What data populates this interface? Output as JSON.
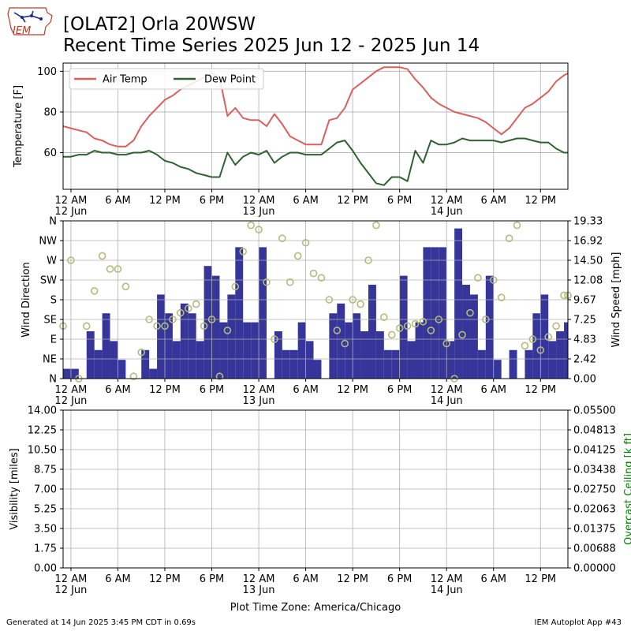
{
  "logo_text": "IEM",
  "title_line1": "[OLAT2] Orla 20WSW",
  "title_line2": "Recent Time Series 2025 Jun 12 - 2025 Jun 14",
  "footer_left": "Generated at 14 Jun 2025 3:45 PM CDT in 0.69s",
  "footer_right": "IEM Autoplot App #43",
  "timezone_label": "Plot Time Zone: America/Chicago",
  "colors": {
    "air_temp": "#d9605f",
    "dew_point": "#2f6131",
    "wind_speed": "#35359a",
    "wind_dir": "#b5ba7d",
    "ceiling_label": "#008000"
  },
  "chart_data": [
    {
      "type": "line",
      "x_unit": "hours since 2025-06-12 00:00 CDT",
      "xlim": [
        -1,
        63.5
      ],
      "x_ticks": [
        0,
        6,
        12,
        18,
        24,
        30,
        36,
        42,
        48,
        54,
        60
      ],
      "x_tick_labels": [
        "12 AM",
        "6 AM",
        "12 PM",
        "6 PM",
        "12 AM",
        "6 AM",
        "12 PM",
        "6 PM",
        "12 AM",
        "6 AM",
        "12 PM"
      ],
      "x_date_labels": [
        {
          "x": 0,
          "label": "12 Jun"
        },
        {
          "x": 24,
          "label": "13 Jun"
        },
        {
          "x": 48,
          "label": "14 Jun"
        }
      ],
      "ylabel": "Temperature [F]",
      "ylim": [
        42,
        104
      ],
      "y_ticks": [
        60,
        80,
        100
      ],
      "grid": true,
      "legend": "top-left",
      "series": [
        {
          "name": "Air Temp",
          "x": [
            -1,
            0,
            1,
            2,
            3,
            4,
            5,
            6,
            7,
            8,
            9,
            10,
            11,
            12,
            13,
            14,
            15,
            16,
            17,
            18,
            19,
            20,
            21,
            22,
            23,
            24,
            25,
            26,
            27,
            28,
            29,
            30,
            31,
            32,
            33,
            34,
            35,
            36,
            37,
            38,
            39,
            40,
            41,
            42,
            43,
            44,
            45,
            46,
            47,
            48,
            49,
            50,
            51,
            52,
            53,
            54,
            55,
            56,
            57,
            58,
            59,
            60,
            61,
            62,
            63,
            63.5
          ],
          "values": [
            73,
            72,
            71,
            70,
            67,
            66,
            64,
            63,
            63,
            66,
            73,
            78,
            82,
            86,
            88,
            91,
            93,
            95,
            97,
            99,
            97,
            78,
            82,
            77,
            76,
            76,
            73,
            79,
            74,
            68,
            66,
            64,
            64,
            64,
            76,
            77,
            82,
            91,
            94,
            97,
            100,
            102,
            102,
            102,
            101,
            96,
            92,
            87,
            84,
            82,
            80,
            79,
            78,
            77,
            75,
            72,
            69,
            72,
            77,
            82,
            84,
            87,
            90,
            95,
            98,
            99
          ]
        },
        {
          "name": "Dew Point",
          "x": [
            -1,
            0,
            1,
            2,
            3,
            4,
            5,
            6,
            7,
            8,
            9,
            10,
            11,
            12,
            13,
            14,
            15,
            16,
            17,
            18,
            19,
            20,
            21,
            22,
            23,
            24,
            25,
            26,
            27,
            28,
            29,
            30,
            31,
            32,
            33,
            34,
            35,
            36,
            37,
            38,
            39,
            40,
            41,
            42,
            43,
            44,
            45,
            46,
            47,
            48,
            49,
            50,
            51,
            52,
            53,
            54,
            55,
            56,
            57,
            58,
            59,
            60,
            61,
            62,
            63,
            63.5
          ],
          "values": [
            58,
            58,
            59,
            59,
            61,
            60,
            60,
            59,
            59,
            60,
            60,
            61,
            59,
            56,
            55,
            53,
            52,
            50,
            49,
            48,
            48,
            60,
            54,
            58,
            60,
            59,
            61,
            55,
            58,
            60,
            60,
            59,
            59,
            59,
            62,
            65,
            66,
            61,
            55,
            50,
            45,
            44,
            48,
            48,
            46,
            61,
            55,
            66,
            64,
            64,
            65,
            67,
            66,
            66,
            66,
            66,
            65,
            66,
            67,
            67,
            66,
            65,
            65,
            62,
            60,
            60
          ]
        }
      ]
    },
    {
      "type": "bar",
      "x_unit": "hours since 2025-06-12 00:00 CDT",
      "xlim": [
        -1,
        63.5
      ],
      "x_ticks": [
        0,
        6,
        12,
        18,
        24,
        30,
        36,
        42,
        48,
        54,
        60
      ],
      "x_tick_labels": [
        "12 AM",
        "6 AM",
        "12 PM",
        "6 PM",
        "12 AM",
        "6 AM",
        "12 PM",
        "6 PM",
        "12 AM",
        "6 AM",
        "12 PM"
      ],
      "x_date_labels": [
        {
          "x": 0,
          "label": "12 Jun"
        },
        {
          "x": 24,
          "label": "13 Jun"
        },
        {
          "x": 48,
          "label": "14 Jun"
        }
      ],
      "ylabel": "Wind Direction",
      "ylim": [
        0,
        360
      ],
      "y_ticks": [
        0,
        45,
        90,
        135,
        180,
        225,
        270,
        315,
        360
      ],
      "y_tick_labels": [
        "N",
        "NE",
        "E",
        "SE",
        "S",
        "SW",
        "W",
        "NW",
        "N"
      ],
      "y2label": "Wind Speed [mph]",
      "y2lim": [
        0,
        19.33
      ],
      "y2_ticks": [
        0.0,
        2.42,
        4.83,
        7.25,
        9.67,
        12.08,
        14.5,
        16.92,
        19.33
      ],
      "y2_tick_labels": [
        "0.00",
        "2.42",
        "4.83",
        "7.25",
        "9.67",
        "12.08",
        "14.50",
        "16.92",
        "19.33"
      ],
      "grid": true,
      "series": [
        {
          "name": "Wind Speed",
          "axis": "right",
          "bar_width_hours": 1,
          "x": [
            -0.5,
            0.5,
            1.5,
            2.5,
            3.5,
            4.5,
            5.5,
            6.5,
            7.5,
            8.5,
            9.5,
            10.5,
            11.5,
            12.5,
            13.5,
            14.5,
            15.5,
            16.5,
            17.5,
            18.5,
            19.5,
            20.5,
            21.5,
            22.5,
            23.5,
            24.5,
            25.5,
            26.5,
            27.5,
            28.5,
            29.5,
            30.5,
            31.5,
            32.5,
            33.5,
            34.5,
            35.5,
            36.5,
            37.5,
            38.5,
            39.5,
            40.5,
            41.5,
            42.5,
            43.5,
            44.5,
            45.5,
            46.5,
            47.5,
            48.5,
            49.5,
            50.5,
            51.5,
            52.5,
            53.5,
            54.5,
            55.5,
            56.5,
            57.5,
            58.5,
            59.5,
            60.5,
            61.5,
            62.5,
            63.5
          ],
          "values": [
            1.2,
            1.2,
            0,
            5.8,
            3.5,
            8.0,
            4.6,
            2.3,
            0,
            0,
            3.5,
            1.2,
            10.3,
            8.0,
            4.6,
            9.2,
            8.0,
            4.6,
            13.8,
            12.6,
            6.9,
            10.3,
            16.1,
            6.9,
            6.9,
            16.1,
            0,
            5.8,
            3.5,
            3.5,
            6.9,
            4.6,
            2.3,
            0,
            8.0,
            9.2,
            6.9,
            8.0,
            5.8,
            11.5,
            5.8,
            3.5,
            3.5,
            12.6,
            4.6,
            6.9,
            16.1,
            16.1,
            16.1,
            4.6,
            18.4,
            11.5,
            10.3,
            3.5,
            12.6,
            2.3,
            0,
            3.5,
            0,
            3.5,
            8.0,
            10.3,
            4.6,
            5.8,
            6.9
          ]
        },
        {
          "name": "Wind Direction",
          "axis": "left",
          "marker": "open-circle",
          "x": [
            -1,
            0,
            1,
            2,
            3,
            4,
            5,
            6,
            7,
            8,
            9,
            10,
            11,
            12,
            13,
            14,
            15,
            16,
            17,
            18,
            19,
            20,
            21,
            22,
            23,
            24,
            25,
            26,
            27,
            28,
            29,
            30,
            31,
            32,
            33,
            34,
            35,
            36,
            37,
            38,
            39,
            40,
            41,
            42,
            43,
            44,
            45,
            46,
            47,
            48,
            49,
            50,
            51,
            52,
            53,
            54,
            55,
            56,
            57,
            58,
            59,
            60,
            61,
            62,
            63,
            63.5
          ],
          "values": [
            120,
            270,
            0,
            120,
            200,
            280,
            250,
            250,
            210,
            5,
            60,
            135,
            120,
            120,
            135,
            150,
            160,
            170,
            120,
            135,
            5,
            110,
            210,
            290,
            350,
            340,
            220,
            90,
            320,
            220,
            280,
            310,
            240,
            230,
            180,
            110,
            80,
            180,
            170,
            270,
            350,
            140,
            100,
            115,
            120,
            125,
            130,
            110,
            135,
            80,
            0,
            100,
            150,
            230,
            135,
            225,
            185,
            320,
            350,
            75,
            90,
            65,
            95,
            120,
            190,
            190
          ]
        }
      ]
    },
    {
      "type": "line",
      "x_unit": "hours since 2025-06-12 00:00 CDT",
      "xlim": [
        -1,
        63.5
      ],
      "x_ticks": [
        0,
        6,
        12,
        18,
        24,
        30,
        36,
        42,
        48,
        54,
        60
      ],
      "x_tick_labels": [
        "12 AM",
        "6 AM",
        "12 PM",
        "6 PM",
        "12 AM",
        "6 AM",
        "12 PM",
        "6 PM",
        "12 AM",
        "6 AM",
        "12 PM"
      ],
      "x_date_labels": [
        {
          "x": 0,
          "label": "12 Jun"
        },
        {
          "x": 24,
          "label": "13 Jun"
        },
        {
          "x": 48,
          "label": "14 Jun"
        }
      ],
      "xlabel": "Plot Time Zone: America/Chicago",
      "ylabel": "Visibility [miles]",
      "ylim": [
        0,
        14
      ],
      "y_ticks": [
        0,
        1.75,
        3.5,
        5.25,
        7,
        8.75,
        10.5,
        12.25,
        14
      ],
      "y_tick_labels": [
        "0.00",
        "1.75",
        "3.50",
        "5.25",
        "7.00",
        "8.75",
        "10.50",
        "12.25",
        "14.00"
      ],
      "y2label": "Overcast Ceiling [k ft]",
      "y2lim": [
        0,
        0.055
      ],
      "y2_tick_labels": [
        "0.00000",
        "0.00688",
        "0.01375",
        "0.02063",
        "0.02750",
        "0.03438",
        "0.04125",
        "0.04813",
        "0.05500"
      ],
      "grid": true,
      "series": []
    }
  ]
}
